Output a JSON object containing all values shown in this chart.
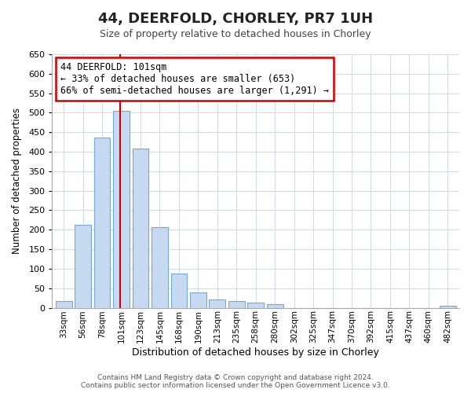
{
  "title": "44, DEERFOLD, CHORLEY, PR7 1UH",
  "subtitle": "Size of property relative to detached houses in Chorley",
  "xlabel": "Distribution of detached houses by size in Chorley",
  "ylabel": "Number of detached properties",
  "categories": [
    "33sqm",
    "56sqm",
    "78sqm",
    "101sqm",
    "123sqm",
    "145sqm",
    "168sqm",
    "190sqm",
    "213sqm",
    "235sqm",
    "258sqm",
    "280sqm",
    "302sqm",
    "325sqm",
    "347sqm",
    "370sqm",
    "392sqm",
    "415sqm",
    "437sqm",
    "460sqm",
    "482sqm"
  ],
  "values": [
    18,
    212,
    437,
    505,
    408,
    207,
    87,
    40,
    22,
    18,
    13,
    10,
    0,
    0,
    0,
    0,
    0,
    0,
    0,
    0,
    5
  ],
  "bar_color": "#c5d9f1",
  "bar_edge_color": "#7BA7D4",
  "highlight_index": 3,
  "highlight_line_color": "#cc0000",
  "ylim": [
    0,
    650
  ],
  "yticks": [
    0,
    50,
    100,
    150,
    200,
    250,
    300,
    350,
    400,
    450,
    500,
    550,
    600,
    650
  ],
  "annotation_line1": "44 DEERFOLD: 101sqm",
  "annotation_line2": "← 33% of detached houses are smaller (653)",
  "annotation_line3": "66% of semi-detached houses are larger (1,291) →",
  "annotation_box_edge": "#cc0000",
  "footer_text": "Contains HM Land Registry data © Crown copyright and database right 2024.\nContains public sector information licensed under the Open Government Licence v3.0.",
  "background_color": "#ffffff",
  "grid_color": "#d0dce8"
}
